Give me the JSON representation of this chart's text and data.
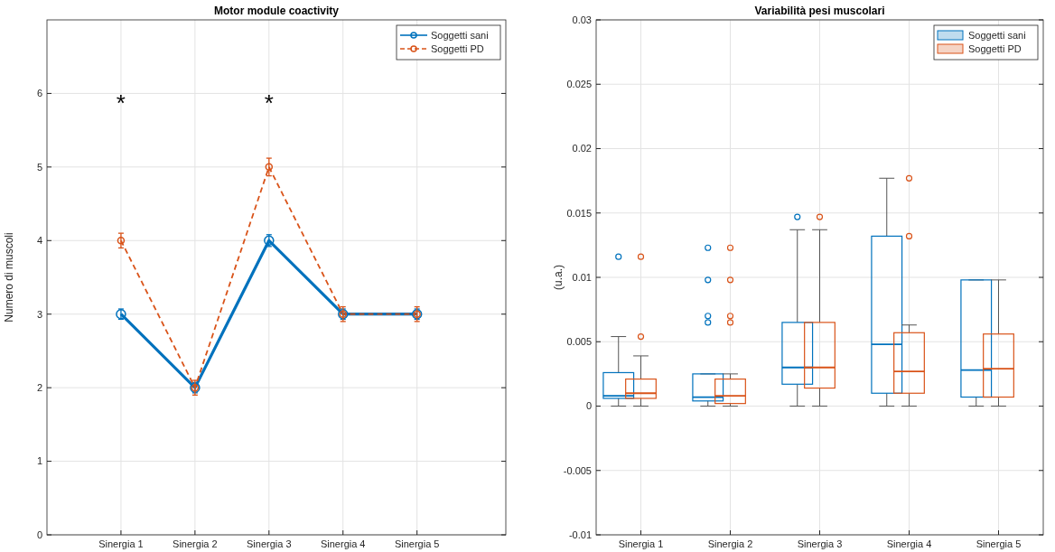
{
  "chart_data": [
    {
      "type": "line",
      "title": "Motor module coactivity",
      "ylabel": "Numero di muscoli",
      "categories": [
        "Sinergia 1",
        "Sinergia 2",
        "Sinergia 3",
        "Sinergia 4",
        "Sinergia 5"
      ],
      "series": [
        {
          "name": "Soggetti sani",
          "color": "#0072bd",
          "values": [
            3,
            2,
            4,
            3,
            3
          ],
          "errors": [
            0.07,
            0.07,
            0.08,
            0.07,
            0.07
          ],
          "line_style": "solid"
        },
        {
          "name": "Soggetti PD",
          "color": "#d95319",
          "values": [
            4,
            2,
            5,
            3,
            3
          ],
          "errors": [
            0.1,
            0.1,
            0.12,
            0.1,
            0.1
          ],
          "line_style": "dashed"
        }
      ],
      "ylim": [
        0,
        7
      ],
      "yticks": [
        0,
        1,
        2,
        3,
        4,
        5,
        6
      ],
      "grid": true,
      "legend": "top right",
      "marker": "circle",
      "annotations": [
        "*",
        "*"
      ]
    },
    {
      "type": "box",
      "title": "Variabilità pesi muscolari",
      "ylabel": "(u.a.)",
      "categories": [
        "Sinergia 1",
        "Sinergia 2",
        "Sinergia 3",
        "Sinergia 4",
        "Sinergia 5"
      ],
      "series": [
        {
          "name": "Soggetti sani",
          "color": "#0072bd",
          "boxes": [
            {
              "low": 0,
              "q1": 0.0006,
              "median": 0.0008,
              "q3": 0.0026,
              "high": 0.0054,
              "outliers": [
                0.0116
              ]
            },
            {
              "low": 0,
              "q1": 0.0004,
              "median": 0.0007,
              "q3": 0.0025,
              "high": 0.0025,
              "outliers": [
                0.0065,
                0.007,
                0.0098,
                0.0123
              ]
            },
            {
              "low": 0,
              "q1": 0.0017,
              "median": 0.003,
              "q3": 0.0065,
              "high": 0.0137,
              "outliers": [
                0.0147
              ]
            },
            {
              "low": 0,
              "q1": 0.001,
              "median": 0.0048,
              "q3": 0.0132,
              "high": 0.0177
            },
            {
              "low": 0,
              "q1": 0.0007,
              "median": 0.0028,
              "q3": 0.0098,
              "high": 0.0098
            }
          ]
        },
        {
          "name": "Soggetti PD",
          "color": "#d95319",
          "boxes": [
            {
              "low": 0,
              "q1": 0.0006,
              "median": 0.001,
              "q3": 0.0021,
              "high": 0.0039,
              "outliers": [
                0.0054,
                0.0116
              ]
            },
            {
              "low": 0,
              "q1": 0.0002,
              "median": 0.0008,
              "q3": 0.0021,
              "high": 0.0025,
              "outliers": [
                0.0065,
                0.007,
                0.0098,
                0.0123
              ]
            },
            {
              "low": 0,
              "q1": 0.0014,
              "median": 0.003,
              "q3": 0.0065,
              "high": 0.0137,
              "outliers": [
                0.0147
              ]
            },
            {
              "low": 0,
              "q1": 0.001,
              "median": 0.0027,
              "q3": 0.0057,
              "high": 0.0063,
              "outliers": [
                0.0132,
                0.0177
              ]
            },
            {
              "low": 0,
              "q1": 0.0007,
              "median": 0.0029,
              "q3": 0.0056,
              "high": 0.0098
            }
          ]
        }
      ],
      "ylim": [
        -0.01,
        0.03
      ],
      "yticks": [
        -0.01,
        -0.005,
        0,
        0.005,
        0.01,
        0.015,
        0.02,
        0.025,
        0.03
      ],
      "grid": true,
      "legend": "top right"
    }
  ]
}
